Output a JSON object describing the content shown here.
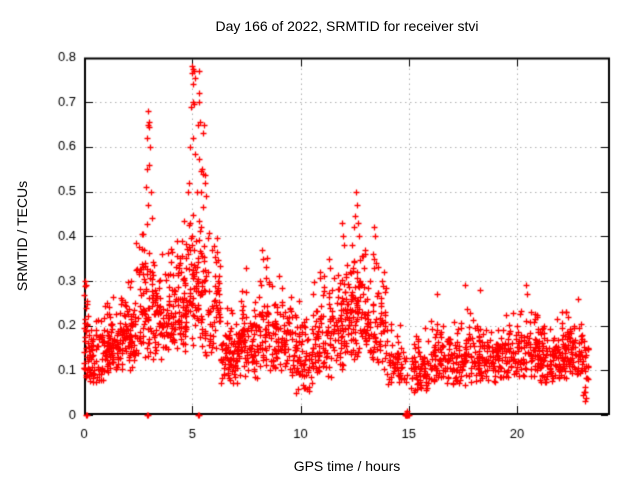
{
  "chart_data": {
    "type": "scatter",
    "title": "Day 166 of 2022, SRMTID for receiver stvi",
    "xlabel": "GPS time / hours",
    "ylabel": "SRMTID / TECUs",
    "xlim": [
      0,
      24.3
    ],
    "ylim": [
      0,
      0.8
    ],
    "xticks": [
      0,
      5,
      10,
      15,
      20
    ],
    "xtick_labels": [
      "0",
      "5",
      "10",
      "15",
      "20"
    ],
    "yticks": [
      0,
      0.1,
      0.2,
      0.3,
      0.4,
      0.5,
      0.6,
      0.7,
      0.8
    ],
    "ytick_labels": [
      "0",
      "0.1",
      "0.2",
      "0.3",
      "0.4",
      "0.5",
      "0.6",
      "0.7",
      "0.8"
    ],
    "grid": true,
    "legend": "none",
    "marker": {
      "symbol": "plus",
      "color": "#ff0000",
      "size": 7
    },
    "grid_color": "#b0b0b0",
    "border_color": "#000000",
    "tick_label_color": "#000000",
    "background": "#ffffff",
    "seed": 20220166,
    "clusters": [
      {
        "x0": 0.0,
        "x1": 0.15,
        "n": 25,
        "ymin": 0.08,
        "ymax": 0.31
      },
      {
        "x0": 0.15,
        "x1": 0.9,
        "n": 70,
        "ymin": 0.06,
        "ymax": 0.26
      },
      {
        "x0": 0.9,
        "x1": 1.6,
        "n": 80,
        "ymin": 0.09,
        "ymax": 0.28
      },
      {
        "x0": 1.6,
        "x1": 2.4,
        "n": 90,
        "ymin": 0.1,
        "ymax": 0.33
      },
      {
        "x0": 2.4,
        "x1": 3.2,
        "n": 80,
        "ymin": 0.13,
        "ymax": 0.47
      },
      {
        "x0": 3.2,
        "x1": 4.2,
        "n": 100,
        "ymin": 0.12,
        "ymax": 0.4
      },
      {
        "x0": 4.2,
        "x1": 4.8,
        "n": 70,
        "ymin": 0.13,
        "ymax": 0.48
      },
      {
        "x0": 4.8,
        "x1": 5.6,
        "n": 90,
        "ymin": 0.15,
        "ymax": 0.6
      },
      {
        "x0": 5.6,
        "x1": 6.3,
        "n": 60,
        "ymin": 0.12,
        "ymax": 0.45
      },
      {
        "x0": 6.3,
        "x1": 7.1,
        "n": 80,
        "ymin": 0.07,
        "ymax": 0.26
      },
      {
        "x0": 7.1,
        "x1": 8.0,
        "n": 90,
        "ymin": 0.08,
        "ymax": 0.3
      },
      {
        "x0": 8.0,
        "x1": 8.6,
        "n": 50,
        "ymin": 0.1,
        "ymax": 0.36
      },
      {
        "x0": 8.6,
        "x1": 9.6,
        "n": 85,
        "ymin": 0.09,
        "ymax": 0.3
      },
      {
        "x0": 9.6,
        "x1": 10.6,
        "n": 85,
        "ymin": 0.05,
        "ymax": 0.28
      },
      {
        "x0": 10.6,
        "x1": 11.6,
        "n": 85,
        "ymin": 0.08,
        "ymax": 0.33
      },
      {
        "x0": 11.6,
        "x1": 12.3,
        "n": 70,
        "ymin": 0.1,
        "ymax": 0.37
      },
      {
        "x0": 12.3,
        "x1": 13.0,
        "n": 75,
        "ymin": 0.12,
        "ymax": 0.44
      },
      {
        "x0": 13.0,
        "x1": 14.0,
        "n": 80,
        "ymin": 0.1,
        "ymax": 0.38
      },
      {
        "x0": 14.0,
        "x1": 14.9,
        "n": 55,
        "ymin": 0.06,
        "ymax": 0.22
      },
      {
        "x0": 15.1,
        "x1": 16.0,
        "n": 70,
        "ymin": 0.05,
        "ymax": 0.2
      },
      {
        "x0": 16.0,
        "x1": 17.0,
        "n": 80,
        "ymin": 0.07,
        "ymax": 0.24
      },
      {
        "x0": 17.0,
        "x1": 18.0,
        "n": 80,
        "ymin": 0.06,
        "ymax": 0.26
      },
      {
        "x0": 18.0,
        "x1": 19.0,
        "n": 80,
        "ymin": 0.07,
        "ymax": 0.23
      },
      {
        "x0": 19.0,
        "x1": 20.0,
        "n": 80,
        "ymin": 0.08,
        "ymax": 0.24
      },
      {
        "x0": 20.0,
        "x1": 21.0,
        "n": 80,
        "ymin": 0.08,
        "ymax": 0.26
      },
      {
        "x0": 21.0,
        "x1": 22.0,
        "n": 90,
        "ymin": 0.07,
        "ymax": 0.22
      },
      {
        "x0": 22.0,
        "x1": 23.0,
        "n": 95,
        "ymin": 0.08,
        "ymax": 0.24
      },
      {
        "x0": 23.0,
        "x1": 23.3,
        "n": 25,
        "ymin": 0.03,
        "ymax": 0.2
      }
    ],
    "peak_points": [
      [
        0.05,
        0.3
      ],
      [
        0.08,
        0.29
      ],
      [
        2.95,
        0.68
      ],
      [
        2.97,
        0.65
      ],
      [
        3.0,
        0.655
      ],
      [
        3.02,
        0.645
      ],
      [
        2.93,
        0.62
      ],
      [
        3.05,
        0.6
      ],
      [
        2.9,
        0.55
      ],
      [
        3.0,
        0.56
      ],
      [
        3.1,
        0.5
      ],
      [
        2.85,
        0.51
      ],
      [
        2.95,
        0.47
      ],
      [
        3.15,
        0.44
      ],
      [
        5.0,
        0.78
      ],
      [
        5.05,
        0.775
      ],
      [
        5.1,
        0.77
      ],
      [
        4.98,
        0.765
      ],
      [
        5.12,
        0.755
      ],
      [
        5.05,
        0.74
      ],
      [
        5.3,
        0.77
      ],
      [
        5.02,
        0.7
      ],
      [
        5.08,
        0.695
      ],
      [
        4.95,
        0.69
      ],
      [
        5.3,
        0.72
      ],
      [
        5.32,
        0.7
      ],
      [
        5.35,
        0.655
      ],
      [
        5.28,
        0.65
      ],
      [
        5.55,
        0.65
      ],
      [
        5.5,
        0.63
      ],
      [
        5.05,
        0.62
      ],
      [
        4.9,
        0.6
      ],
      [
        5.15,
        0.585
      ],
      [
        5.45,
        0.55
      ],
      [
        5.4,
        0.545
      ],
      [
        5.5,
        0.54
      ],
      [
        4.85,
        0.52
      ],
      [
        5.2,
        0.5
      ],
      [
        5.6,
        0.52
      ],
      [
        5.65,
        0.49
      ],
      [
        7.5,
        0.33
      ],
      [
        8.2,
        0.37
      ],
      [
        8.25,
        0.35
      ],
      [
        9.0,
        0.31
      ],
      [
        10.9,
        0.32
      ],
      [
        11.3,
        0.35
      ],
      [
        11.35,
        0.33
      ],
      [
        11.9,
        0.43
      ],
      [
        11.95,
        0.4
      ],
      [
        12.0,
        0.38
      ],
      [
        12.55,
        0.5
      ],
      [
        12.6,
        0.47
      ],
      [
        12.5,
        0.445
      ],
      [
        12.65,
        0.43
      ],
      [
        12.45,
        0.42
      ],
      [
        12.7,
        0.4
      ],
      [
        12.4,
        0.38
      ],
      [
        13.4,
        0.42
      ],
      [
        13.45,
        0.4
      ],
      [
        13.35,
        0.36
      ],
      [
        13.5,
        0.34
      ],
      [
        16.3,
        0.27
      ],
      [
        17.6,
        0.29
      ],
      [
        18.3,
        0.28
      ],
      [
        20.4,
        0.29
      ],
      [
        20.45,
        0.27
      ],
      [
        22.8,
        0.26
      ]
    ],
    "zero_points": [
      [
        0.08,
        0.0
      ],
      [
        0.12,
        0.0
      ],
      [
        2.9,
        0.0
      ],
      [
        2.95,
        0.0
      ],
      [
        5.28,
        0.0
      ],
      [
        5.33,
        0.0
      ],
      [
        14.82,
        0.0
      ],
      [
        14.85,
        0.0
      ],
      [
        14.88,
        0.0
      ],
      [
        14.9,
        0.0
      ],
      [
        14.93,
        0.0
      ],
      [
        14.96,
        0.0
      ],
      [
        15.0,
        0.0
      ],
      [
        14.87,
        0.005
      ],
      [
        14.91,
        0.008
      ]
    ]
  }
}
